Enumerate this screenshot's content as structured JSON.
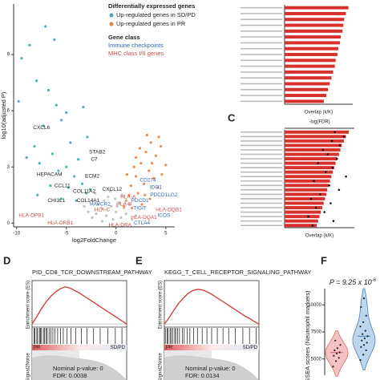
{
  "chart_data": [
    {
      "type": "scatter",
      "xlabel": "log2FoldChange",
      "ylabel": "log10(adjusted P)",
      "xlim": [
        -10.3,
        5.9
      ],
      "ylim": [
        -0.2,
        11.7
      ],
      "xticks": [
        -10,
        -5,
        0,
        5
      ],
      "yticks": [
        0,
        3,
        6,
        9
      ],
      "legend_title": "Differentially expressed genes",
      "class_title": "Gene class",
      "gene_classes": [
        {
          "name": "Immune checkpoints",
          "color": "#2f66b3"
        },
        {
          "name": "MHC class I/II genes",
          "color": "#cf4a44"
        }
      ],
      "series": [
        {
          "color": "#bdbdbd",
          "x": [
            -2,
            -1.5,
            -1,
            -0.5,
            0,
            0.5,
            1,
            -1.2,
            -0.8,
            -0.3,
            0.3,
            -2.4,
            1.6,
            -1.8,
            0.8,
            -0.1,
            -2.8,
            2,
            -3.2,
            -0.6,
            0.6,
            1.3,
            -1.4,
            0.1,
            -2.1
          ],
          "values": [
            0.5,
            0.8,
            0.4,
            0.9,
            0.6,
            0.3,
            0.5,
            1.2,
            1.4,
            0.2,
            1.1,
            0.3,
            0.2,
            1.0,
            0.8,
            1.3,
            0.6,
            0.4,
            0.9,
            1.7,
            1.5,
            1.0,
            0.1,
            0.9,
            1.6
          ]
        },
        {
          "name": "Up-regulated genes in SD/PD",
          "color": "#3fa9b0",
          "x": [
            -9.5,
            -8.7,
            -8,
            -6.8,
            -7.3,
            -6,
            -5.5,
            -5,
            -4.6,
            -8.2,
            -9,
            -7.7,
            -6.4,
            -5.8,
            -5,
            -4.2,
            -3.8,
            -3.4,
            -4.8,
            -6.6,
            -3,
            -2.6,
            -7.9,
            -5.5,
            -4,
            -3.3,
            -2.9,
            -7.1,
            -6.2,
            -9.8
          ],
          "values": [
            8.8,
            9.5,
            7.6,
            7.1,
            5.2,
            6.3,
            5.5,
            5.9,
            4.3,
            4.1,
            3.5,
            3.2,
            3.7,
            2.8,
            3.0,
            2.5,
            3.4,
            2.1,
            1.9,
            2.0,
            1.6,
            1.8,
            1.5,
            1.3,
            1.2,
            6.2,
            4.6,
            10.5,
            9.8,
            6.5
          ]
        },
        {
          "name": "Up-regulated genes in PR",
          "color": "#e8823e",
          "x": [
            1,
            1.5,
            2,
            2.5,
            3,
            3.5,
            4,
            4.5,
            2.2,
            2.8,
            3.3,
            3.8,
            4.2,
            1.3,
            1.8,
            2.4,
            3.1,
            0.8,
            1.6,
            2.6,
            3.4,
            4.6,
            5,
            1.1,
            2,
            3.6,
            2.9,
            4.3
          ],
          "values": [
            1.2,
            2,
            2.5,
            3.2,
            3.8,
            4.3,
            3.6,
            4.1,
            1.6,
            2.1,
            2.8,
            2.4,
            1.9,
            1.5,
            3.0,
            4.0,
            4.7,
            0.9,
            0.8,
            1.0,
            1.3,
            2.6,
            3.1,
            2.6,
            3.5,
            3.2,
            1.5,
            4.6
          ]
        }
      ],
      "annotations": [
        {
          "text": "CXCL6",
          "x": -7.5,
          "y": 5.1,
          "color": "#222"
        },
        {
          "text": "STAB2",
          "x": -1.9,
          "y": 3.8,
          "color": "#222"
        },
        {
          "text": "C7",
          "x": -2.2,
          "y": 3.4,
          "color": "#222"
        },
        {
          "text": "HEPACAM",
          "x": -6.7,
          "y": 2.6,
          "color": "#222"
        },
        {
          "text": "ECM2",
          "x": -2.4,
          "y": 2.5,
          "color": "#222"
        },
        {
          "text": "CCL11",
          "x": -5.4,
          "y": 2.0,
          "color": "#222"
        },
        {
          "text": "COL11A2",
          "x": -3.2,
          "y": 1.7,
          "color": "#222"
        },
        {
          "text": "CHI3L1",
          "x": -6.0,
          "y": 1.2,
          "color": "#222"
        },
        {
          "text": "COL14A1",
          "x": -2.8,
          "y": 1.2,
          "color": "#222"
        },
        {
          "text": "CXCL12",
          "x": -0.4,
          "y": 1.8,
          "color": "#222"
        },
        {
          "text": "HAVCR2",
          "x": -1.6,
          "y": 1.0,
          "color": "#2f66b3"
        },
        {
          "text": "IDO1",
          "x": 4.0,
          "y": 1.9,
          "color": "#2f66b3"
        },
        {
          "text": "PDCD1LG2",
          "x": 4.8,
          "y": 1.5,
          "color": "#2f66b3"
        },
        {
          "text": "CD274",
          "x": 3.2,
          "y": 2.3,
          "color": "#2f66b3"
        },
        {
          "text": "PDCD1",
          "x": 2.4,
          "y": 1.2,
          "color": "#2f66b3"
        },
        {
          "text": "TIGIT",
          "x": 2.4,
          "y": 0.8,
          "color": "#2f66b3"
        },
        {
          "text": "ICOS",
          "x": 4.8,
          "y": 0.4,
          "color": "#2f66b3"
        },
        {
          "text": "CTLA4",
          "x": 2.6,
          "y": 0.0,
          "color": "#2f66b3"
        },
        {
          "text": "HLA-DPB1",
          "x": -8.5,
          "y": 0.4,
          "color": "#cf4a44"
        },
        {
          "text": "HLA-DRB1",
          "x": -5.6,
          "y": 0.0,
          "color": "#cf4a44"
        },
        {
          "text": "HLA-C",
          "x": -1.4,
          "y": 0.7,
          "color": "#cf4a44"
        },
        {
          "text": "HLA-B",
          "x": 0.8,
          "y": 1.0,
          "color": "#cf4a44"
        },
        {
          "text": "HLA-A",
          "x": 1.2,
          "y": 1.4,
          "color": "#cf4a44"
        },
        {
          "text": "HLA-DQB1",
          "x": 5.3,
          "y": 0.7,
          "color": "#cf4a44"
        },
        {
          "text": "HLA-DQA1",
          "x": 2.8,
          "y": 0.3,
          "color": "#cf4a44"
        },
        {
          "text": "HLA-DRA",
          "x": 0.4,
          "y": -0.1,
          "color": "#cf4a44"
        }
      ]
    },
    {
      "type": "hbar",
      "xlabel": "Overlap (k/K)",
      "color": "#d7312b",
      "xlim": [
        0,
        0.08
      ],
      "categories": [
        null,
        null,
        null,
        null,
        null,
        null,
        null,
        null,
        null,
        null,
        null,
        null,
        null,
        null,
        null,
        null,
        null
      ],
      "values": [
        0.075,
        0.072,
        0.07,
        0.069,
        0.068,
        0.066,
        0.065,
        0.063,
        0.062,
        0.06,
        0.059,
        0.057,
        0.055,
        0.053,
        0.051,
        0.049,
        0.046
      ]
    },
    {
      "type": "hbar_dot",
      "panel": "C",
      "xlabel": "Overlap (k/K)",
      "x2label": "-log(FDR)",
      "xlim": [
        0,
        0.1
      ],
      "x2lim": [
        0,
        10
      ],
      "categories": [
        null,
        null,
        null,
        null,
        null,
        null,
        null,
        null,
        null,
        null,
        null,
        null,
        null,
        null,
        null,
        null,
        null,
        null,
        null,
        null,
        null,
        null
      ],
      "series": [
        {
          "color": "#d7312b",
          "values": [
            0.092,
            0.088,
            0.085,
            0.082,
            0.08,
            0.078,
            0.075,
            0.073,
            0.071,
            0.069,
            0.067,
            0.065,
            0.063,
            0.061,
            0.06,
            0.058,
            0.056,
            0.054,
            0.052,
            0.05,
            0.048,
            0.046
          ]
        },
        {
          "color": "#111",
          "axis": "x2",
          "values": [
            7.2,
            8.5,
            6.8,
            7.9,
            5.5,
            6.2,
            7.5,
            4.8,
            6.9,
            5.9,
            8.8,
            4.2,
            6.4,
            7.8,
            5.1,
            3.8,
            6.6,
            4.5,
            5.7,
            3.4,
            7.0,
            4.0
          ]
        }
      ]
    },
    {
      "type": "gsea",
      "panel": "D",
      "title": "PID_CD8_TCR_DOWNSTREAM_PATHWAY",
      "ylabel": "Enrichment score (ES)",
      "metric_label": "Signal2Noise",
      "left_label": "PR",
      "right_label": "SD/PD",
      "stats": [
        "Nominal p-value: 0",
        "FDR: 0.0038"
      ],
      "xlim": [
        0,
        100
      ],
      "ylim": [
        -0.05,
        0.7
      ],
      "x": [
        0,
        5,
        10,
        15,
        20,
        25,
        30,
        35,
        40,
        45,
        50,
        55,
        60,
        65,
        70,
        75,
        80,
        85,
        90,
        95,
        100
      ],
      "values": [
        0,
        0.12,
        0.25,
        0.36,
        0.45,
        0.52,
        0.57,
        0.6,
        0.58,
        0.54,
        0.5,
        0.45,
        0.4,
        0.35,
        0.3,
        0.25,
        0.2,
        0.15,
        0.1,
        0.05,
        0
      ],
      "color": "#d0423c",
      "hits": [
        2,
        3,
        5,
        6,
        8,
        9,
        10,
        12,
        13,
        15,
        16,
        18,
        20,
        22,
        24,
        27,
        30,
        33,
        37,
        41,
        46,
        52,
        58,
        65,
        72,
        80,
        88,
        95
      ]
    },
    {
      "type": "gsea",
      "panel": "E",
      "title": "KEGG_T_CELL_RECEPTOR_SIGNALING_PATHWAY",
      "ylabel": "Enrichment score (ES)",
      "metric_label": "Signal2Noise",
      "left_label": "PR",
      "right_label": "SD/PD",
      "stats": [
        "Nominal p-value: 0",
        "FDR: 0.0134"
      ],
      "xlim": [
        0,
        100
      ],
      "ylim": [
        -0.05,
        0.7
      ],
      "x": [
        0,
        5,
        10,
        15,
        20,
        25,
        30,
        35,
        40,
        45,
        50,
        55,
        60,
        65,
        70,
        75,
        80,
        85,
        90,
        95,
        100
      ],
      "values": [
        0,
        0.1,
        0.22,
        0.33,
        0.42,
        0.49,
        0.54,
        0.56,
        0.55,
        0.52,
        0.48,
        0.43,
        0.38,
        0.33,
        0.28,
        0.23,
        0.18,
        0.13,
        0.09,
        0.04,
        0
      ],
      "color": "#d0423c",
      "hits": [
        1,
        3,
        4,
        6,
        7,
        9,
        11,
        12,
        14,
        16,
        19,
        21,
        24,
        27,
        31,
        35,
        40,
        45,
        50,
        56,
        62,
        68,
        75,
        83,
        90,
        97
      ]
    },
    {
      "type": "violin",
      "panel": "F",
      "p_label": "P = 9.25 x 10",
      "p_exponent": "-6",
      "ylabel": "GSEA scores (Neutrophil markers)",
      "ylim": [
        3500,
        11500
      ],
      "yticks": [
        5000,
        7500,
        10000
      ],
      "series": [
        {
          "color": "#f4c2c2",
          "stroke": "#d66a6a",
          "values": [
            4300,
            4800,
            5100,
            5300,
            5500,
            5600,
            5800,
            6000,
            6300,
            6700
          ]
        },
        {
          "color": "#bcd6ee",
          "stroke": "#4a7fb5",
          "values": [
            4900,
            5400,
            5800,
            6100,
            6300,
            6500,
            6700,
            6900,
            7100,
            7300,
            7600,
            8000,
            8400,
            9000,
            9800,
            10600
          ]
        }
      ]
    }
  ]
}
